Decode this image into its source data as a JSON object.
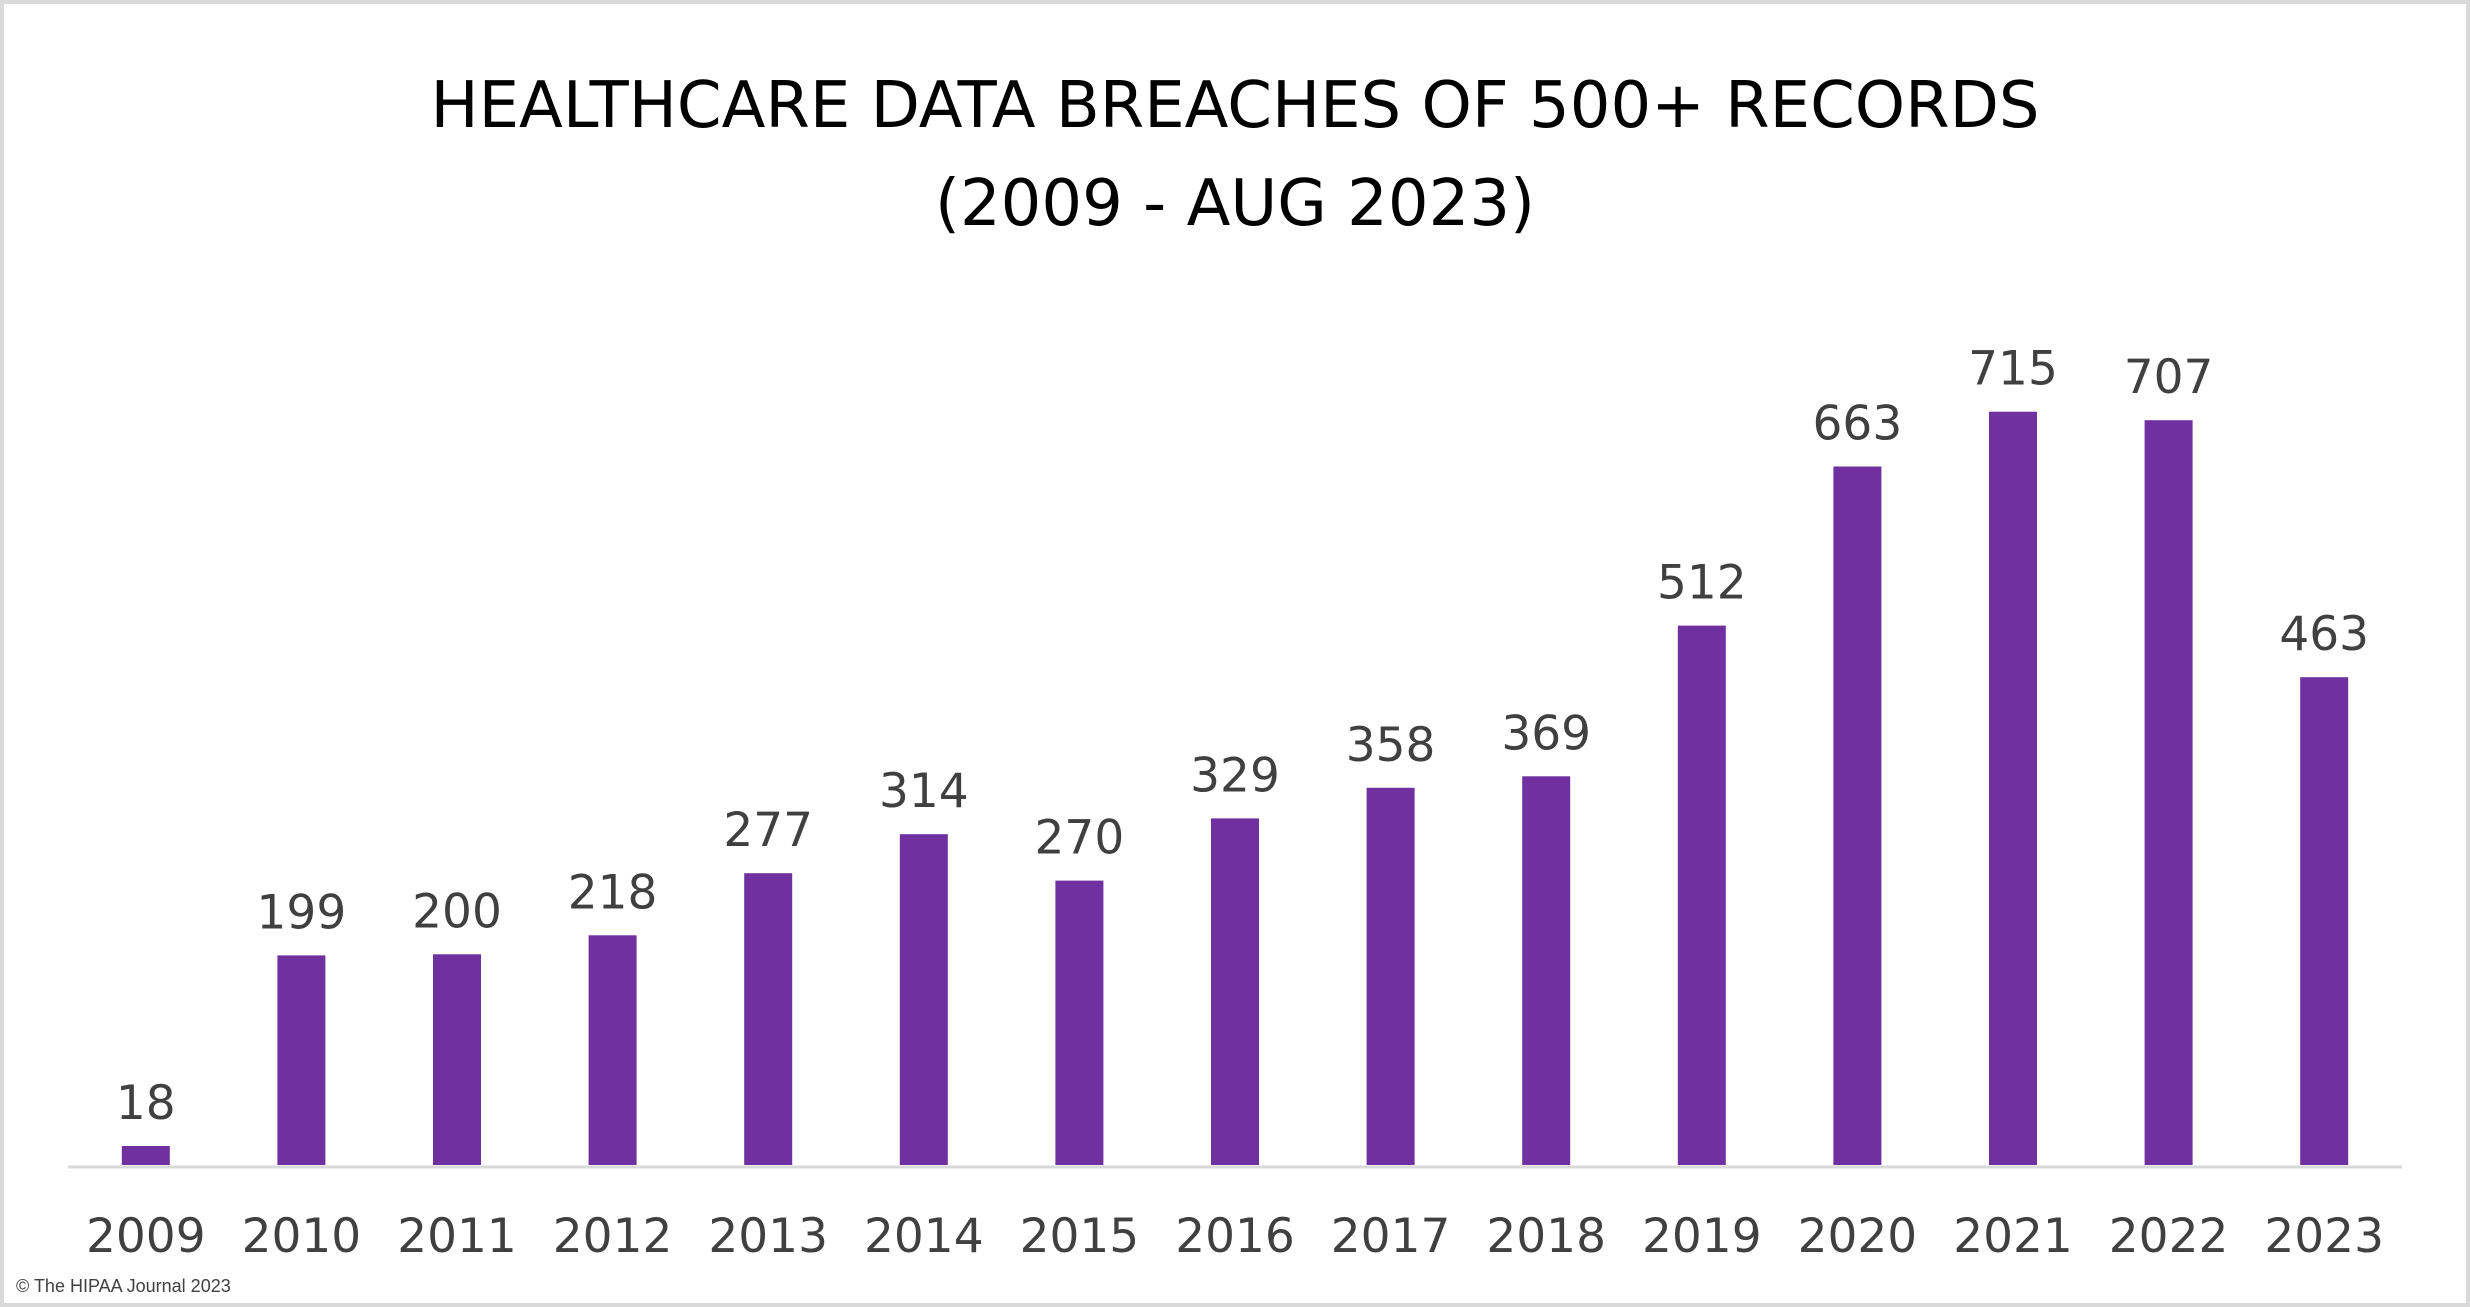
{
  "chart_data": {
    "type": "bar",
    "title": "HEALTHCARE DATA BREACHES OF 500+ RECORDS",
    "subtitle": "(2009 - AUG 2023)",
    "categories": [
      "2009",
      "2010",
      "2011",
      "2012",
      "2013",
      "2014",
      "2015",
      "2016",
      "2017",
      "2018",
      "2019",
      "2020",
      "2021",
      "2022",
      "2023"
    ],
    "values": [
      18,
      199,
      200,
      218,
      277,
      314,
      270,
      329,
      358,
      369,
      512,
      663,
      715,
      707,
      463
    ],
    "xlabel": "",
    "ylabel": "",
    "ylim": [
      0,
      800
    ],
    "grid": false,
    "legend": "none",
    "bar_color": "#7030A0",
    "axis_color": "#d9d9d9"
  },
  "footer": {
    "copyright": "© The HIPAA Journal 2023"
  }
}
